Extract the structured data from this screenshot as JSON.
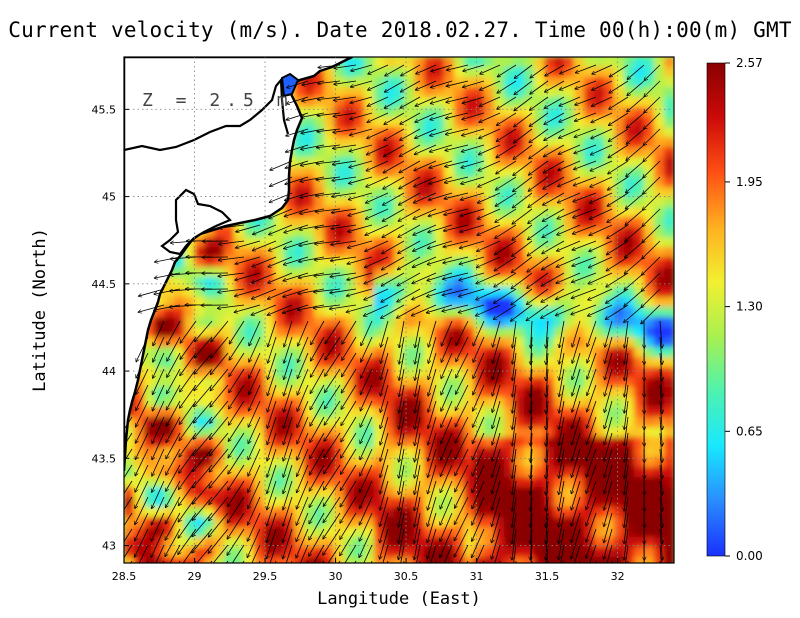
{
  "title": "Current velocity (m/s). Date 2018.02.27. Time 00(h):00(m) GMT",
  "depth_label": "Z = 2.5 m",
  "x_axis": {
    "label": "Langitude (East)",
    "ticks": [
      "28.5",
      "29",
      "29.5",
      "30",
      "30.5",
      "31",
      "31.5",
      "32"
    ],
    "range": [
      28.5,
      32.4
    ]
  },
  "y_axis": {
    "label": "Latitude (North)",
    "ticks": [
      "43",
      "43.5",
      "44",
      "44.5",
      "45",
      "45.5"
    ],
    "range": [
      42.9,
      45.8
    ]
  },
  "colorbar": {
    "ticks": [
      "0.00",
      "0.65",
      "1.30",
      "1.95",
      "2.57"
    ],
    "min": 0.0,
    "max": 2.57,
    "colors": [
      "#1a30ff",
      "#2a8cff",
      "#18e8ff",
      "#4ef2b0",
      "#a8f050",
      "#f2f030",
      "#ffb020",
      "#ff5014",
      "#cc0a0a",
      "#8a0000"
    ]
  },
  "map": {
    "land_color": "#ffffff",
    "coastline_color": "#000000",
    "vector_color": "#000000"
  }
}
